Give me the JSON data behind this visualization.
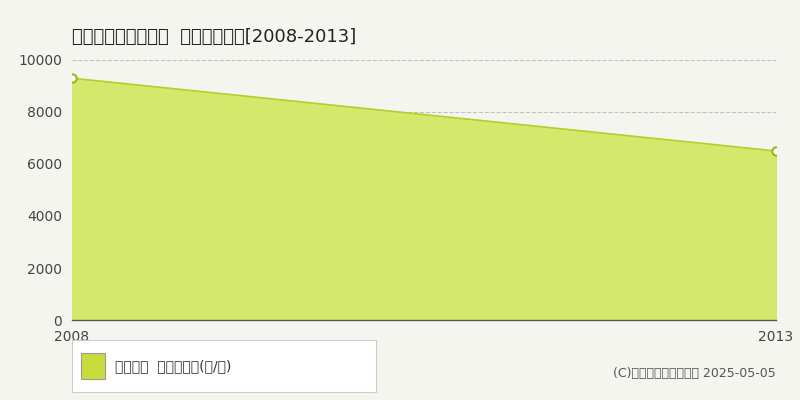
{
  "title": "中川郡本別町上本別  農地価格推移[2008-2013]",
  "years": [
    2008,
    2013
  ],
  "values": [
    9300,
    6500
  ],
  "fill_color": "#d4e96b",
  "line_color": "#b8cc2c",
  "marker_color": "#ffffff",
  "marker_edge_color": "#a0b020",
  "ylim": [
    0,
    10000
  ],
  "xlim": [
    2008,
    2013
  ],
  "yticks": [
    0,
    2000,
    4000,
    6000,
    8000,
    10000
  ],
  "xticks": [
    2008,
    2013
  ],
  "grid_color": "#aaaaaa",
  "bg_color": "#f5f5f0",
  "plot_bg_color": "#f5f5f0",
  "legend_label": "農地価格  平均坪単価(円/坪)",
  "legend_color": "#c8dc3c",
  "copyright": "(C)土地価格ドットコム 2025-05-05",
  "title_fontsize": 13,
  "axis_fontsize": 10,
  "legend_fontsize": 10,
  "copyright_fontsize": 9
}
